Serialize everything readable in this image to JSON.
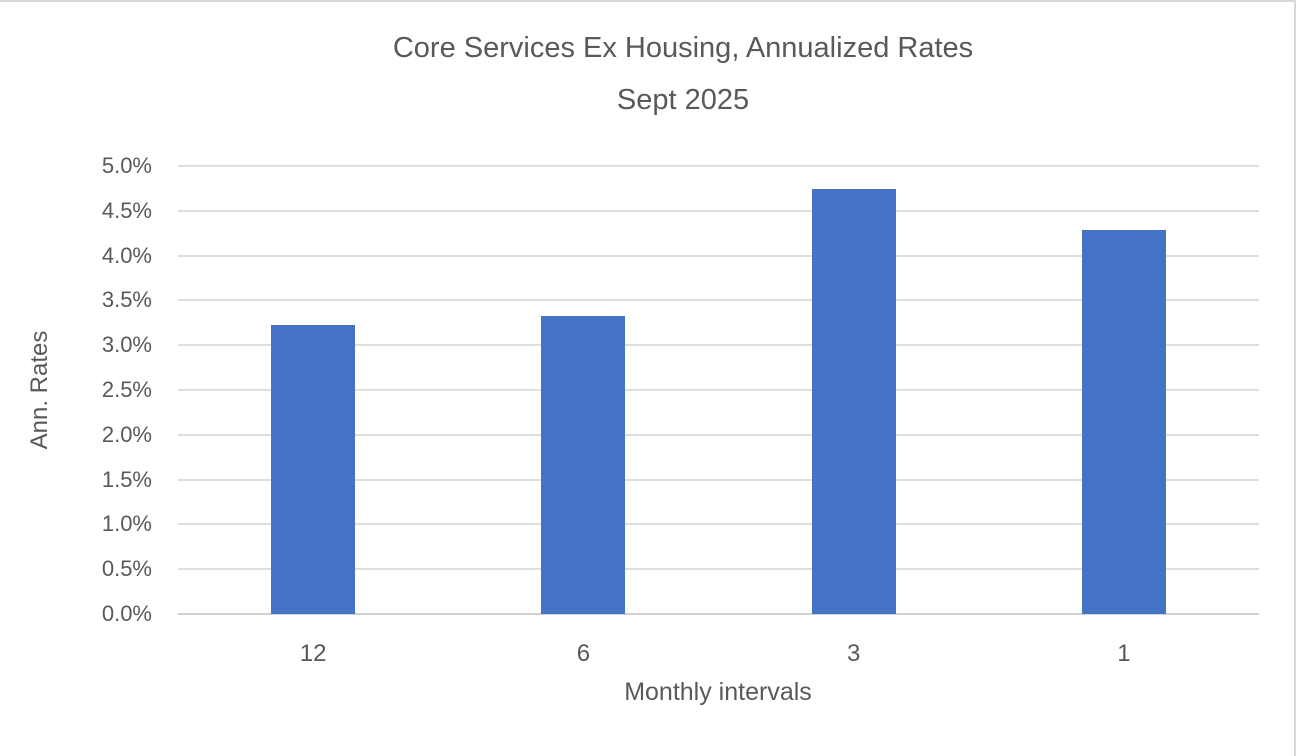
{
  "chart_data": {
    "type": "bar",
    "title": "Core Services Ex Housing, Annualized Rates",
    "subtitle": "Sept 2025",
    "categories": [
      "12",
      "6",
      "3",
      "1"
    ],
    "values": [
      3.23,
      3.33,
      4.74,
      4.29
    ],
    "xlabel": "Monthly intervals",
    "ylabel": "Ann. Rates",
    "ylim": [
      0,
      5.0
    ],
    "ytick_step": 0.5,
    "ytick_labels": [
      "0.0%",
      "0.5%",
      "1.0%",
      "1.5%",
      "2.0%",
      "2.5%",
      "3.0%",
      "3.5%",
      "4.0%",
      "4.5%",
      "5.0%"
    ],
    "grid": true,
    "legend": "none",
    "bar_color": "#4472C4",
    "text_color": "#595959",
    "gridline_color": "#DEDEDE",
    "axis_line_color": "#D2D2D2",
    "background": "#FFFFFF"
  }
}
